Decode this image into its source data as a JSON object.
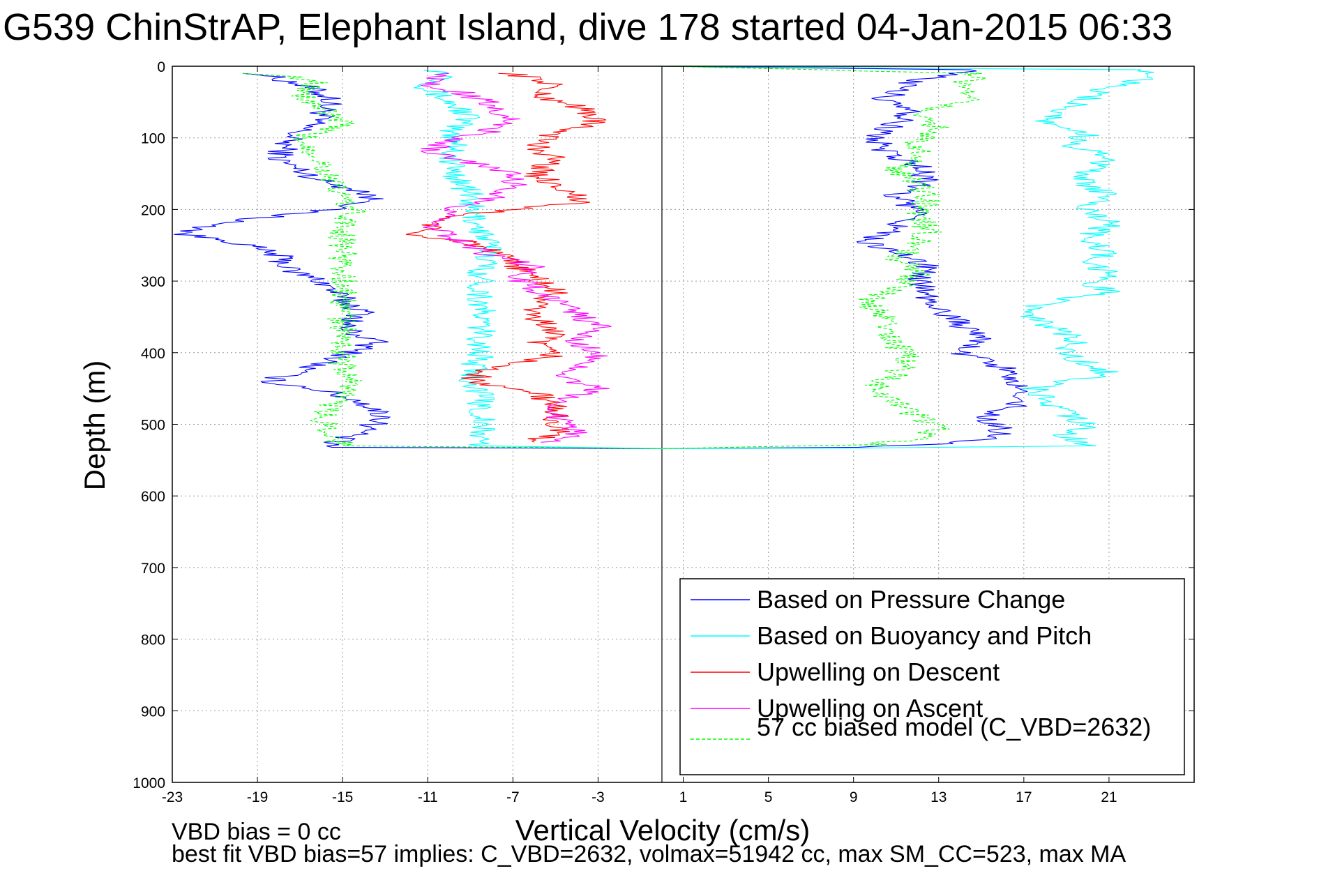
{
  "title": "G539 ChinStrAP, Elephant Island, dive 178 started 04-Jan-2015 06:33",
  "footnotes": {
    "line1": "VBD bias = 0 cc",
    "line2": "best fit VBD bias=57 implies: C_VBD=2632, volmax=51942 cc, max SM_CC=523, max MA"
  },
  "chart_data": {
    "type": "line",
    "xlabel": "Vertical Velocity (cm/s)",
    "ylabel": "Depth (m)",
    "xlim": [
      -23,
      25
    ],
    "ylim": [
      1000,
      0
    ],
    "y_reversed": true,
    "xticks": [
      -23,
      -19,
      -15,
      -11,
      -7,
      -3,
      1,
      5,
      9,
      13,
      17,
      21
    ],
    "yticks": [
      0,
      100,
      200,
      300,
      400,
      500,
      600,
      700,
      800,
      900,
      1000
    ],
    "grid": true,
    "legend_position": "bottom-right",
    "reference_line_x": 0,
    "series": [
      {
        "name": "Based on Pressure Change",
        "color": "#0000ff",
        "dash": "solid",
        "points": [
          [
            -19,
            10
          ],
          [
            -17,
            25
          ],
          [
            -15.5,
            45
          ],
          [
            -16,
            70
          ],
          [
            -17.5,
            100
          ],
          [
            -18,
            130
          ],
          [
            -16,
            160
          ],
          [
            -14,
            175
          ],
          [
            -13.5,
            190
          ],
          [
            -17,
            205
          ],
          [
            -21,
            220
          ],
          [
            -22.5,
            235
          ],
          [
            -20,
            245
          ],
          [
            -18,
            265
          ],
          [
            -17.5,
            285
          ],
          [
            -16,
            300
          ],
          [
            -15,
            325
          ],
          [
            -14,
            345
          ],
          [
            -15,
            365
          ],
          [
            -13.5,
            385
          ],
          [
            -15,
            405
          ],
          [
            -17,
            425
          ],
          [
            -18.5,
            440
          ],
          [
            -16,
            452
          ],
          [
            -14,
            470
          ],
          [
            -13,
            490
          ],
          [
            -14,
            510
          ],
          [
            -15.5,
            525
          ],
          [
            -15.5,
            532
          ],
          [
            0,
            534
          ],
          [
            9,
            532
          ],
          [
            13,
            527
          ],
          [
            15.5,
            520
          ],
          [
            16,
            505
          ],
          [
            15,
            490
          ],
          [
            17,
            470
          ],
          [
            16.5,
            440
          ],
          [
            16,
            420
          ],
          [
            14,
            400
          ],
          [
            15,
            385
          ],
          [
            14,
            360
          ],
          [
            13,
            340
          ],
          [
            12.5,
            320
          ],
          [
            12,
            300
          ],
          [
            12.5,
            280
          ],
          [
            11,
            260
          ],
          [
            9.5,
            245
          ],
          [
            11,
            225
          ],
          [
            12,
            205
          ],
          [
            11,
            180
          ],
          [
            12.5,
            160
          ],
          [
            12,
            140
          ],
          [
            10.5,
            120
          ],
          [
            10,
            100
          ],
          [
            11,
            80
          ],
          [
            12,
            60
          ],
          [
            10.5,
            45
          ],
          [
            11,
            35
          ],
          [
            12,
            20
          ],
          [
            14.5,
            5
          ],
          [
            0,
            0
          ]
        ]
      },
      {
        "name": "Based on Buoyancy and Pitch",
        "color": "#00ffff",
        "dash": "solid",
        "points": [
          [
            -10.5,
            5
          ],
          [
            -10,
            15
          ],
          [
            -11,
            30
          ],
          [
            -10,
            50
          ],
          [
            -9,
            70
          ],
          [
            -10,
            90
          ],
          [
            -9.5,
            110
          ],
          [
            -10,
            130
          ],
          [
            -9.5,
            160
          ],
          [
            -9,
            180
          ],
          [
            -9,
            200
          ],
          [
            -8.5,
            230
          ],
          [
            -8,
            260
          ],
          [
            -8.5,
            290
          ],
          [
            -8.5,
            330
          ],
          [
            -8.5,
            370
          ],
          [
            -8.5,
            400
          ],
          [
            -9,
            430
          ],
          [
            -8.5,
            460
          ],
          [
            -8.5,
            500
          ],
          [
            -8.5,
            530
          ],
          [
            0,
            534
          ],
          [
            10,
            533
          ],
          [
            20,
            530
          ],
          [
            19,
            515
          ],
          [
            20,
            500
          ],
          [
            19,
            485
          ],
          [
            18,
            470
          ],
          [
            17.5,
            450
          ],
          [
            19,
            440
          ],
          [
            21,
            430
          ],
          [
            20,
            415
          ],
          [
            19,
            400
          ],
          [
            19.5,
            380
          ],
          [
            18,
            360
          ],
          [
            17,
            340
          ],
          [
            19,
            325
          ],
          [
            21,
            315
          ],
          [
            20,
            300
          ],
          [
            21,
            290
          ],
          [
            20,
            275
          ],
          [
            21,
            260
          ],
          [
            20,
            240
          ],
          [
            21,
            220
          ],
          [
            20,
            200
          ],
          [
            21,
            180
          ],
          [
            20,
            165
          ],
          [
            20,
            145
          ],
          [
            21,
            125
          ],
          [
            19,
            110
          ],
          [
            20,
            95
          ],
          [
            18,
            75
          ],
          [
            19,
            60
          ],
          [
            20,
            45
          ],
          [
            21,
            30
          ],
          [
            23,
            15
          ],
          [
            22.5,
            5
          ],
          [
            0,
            0
          ]
        ]
      },
      {
        "name": "Upwelling on Descent",
        "color": "#ff0000",
        "dash": "solid",
        "points": [
          [
            -7,
            10
          ],
          [
            -5,
            25
          ],
          [
            -6,
            40
          ],
          [
            -4,
            55
          ],
          [
            -3,
            75
          ],
          [
            -5,
            95
          ],
          [
            -6,
            110
          ],
          [
            -5,
            130
          ],
          [
            -6,
            150
          ],
          [
            -5,
            165
          ],
          [
            -4,
            180
          ],
          [
            -4,
            190
          ],
          [
            -7,
            200
          ],
          [
            -10,
            210
          ],
          [
            -11,
            225
          ],
          [
            -12,
            235
          ],
          [
            -9,
            245
          ],
          [
            -8,
            260
          ],
          [
            -7,
            275
          ],
          [
            -6,
            295
          ],
          [
            -5,
            315
          ],
          [
            -6,
            335
          ],
          [
            -6,
            350
          ],
          [
            -5,
            370
          ],
          [
            -6,
            390
          ],
          [
            -5,
            405
          ],
          [
            -8,
            420
          ],
          [
            -9,
            440
          ],
          [
            -6,
            455
          ],
          [
            -5,
            475
          ],
          [
            -5,
            495
          ],
          [
            -5,
            510
          ],
          [
            -6,
            525
          ]
        ]
      },
      {
        "name": "Upwelling on Ascent",
        "color": "#ff00ff",
        "dash": "solid",
        "points": [
          [
            -5,
            525
          ],
          [
            -4,
            510
          ],
          [
            -5,
            490
          ],
          [
            -5,
            470
          ],
          [
            -3,
            450
          ],
          [
            -5,
            435
          ],
          [
            -4,
            420
          ],
          [
            -3,
            400
          ],
          [
            -4,
            385
          ],
          [
            -3,
            365
          ],
          [
            -4,
            345
          ],
          [
            -5,
            330
          ],
          [
            -6,
            310
          ],
          [
            -7,
            295
          ],
          [
            -6,
            280
          ],
          [
            -8,
            265
          ],
          [
            -9,
            250
          ],
          [
            -10,
            235
          ],
          [
            -11,
            220
          ],
          [
            -10,
            200
          ],
          [
            -8,
            185
          ],
          [
            -7,
            170
          ],
          [
            -7,
            150
          ],
          [
            -9,
            135
          ],
          [
            -11,
            120
          ],
          [
            -10,
            105
          ],
          [
            -8,
            90
          ],
          [
            -7,
            75
          ],
          [
            -8,
            55
          ],
          [
            -9,
            40
          ],
          [
            -11,
            25
          ],
          [
            -10,
            10
          ]
        ]
      },
      {
        "name": "57 cc biased model (C_VBD=2632)",
        "color": "#00ff00",
        "dash": "dashed",
        "points": [
          [
            -19,
            10
          ],
          [
            -16,
            20
          ],
          [
            -17,
            40
          ],
          [
            -16,
            60
          ],
          [
            -15,
            80
          ],
          [
            -17,
            100
          ],
          [
            -16,
            130
          ],
          [
            -15.5,
            165
          ],
          [
            -15,
            185
          ],
          [
            -14.5,
            200
          ],
          [
            -15,
            225
          ],
          [
            -15,
            260
          ],
          [
            -15,
            300
          ],
          [
            -15,
            340
          ],
          [
            -15,
            380
          ],
          [
            -15,
            420
          ],
          [
            -14.5,
            450
          ],
          [
            -15.5,
            470
          ],
          [
            -16,
            490
          ],
          [
            -15.5,
            510
          ],
          [
            -15,
            530
          ],
          [
            0,
            534
          ],
          [
            10,
            528
          ],
          [
            12,
            520
          ],
          [
            13,
            505
          ],
          [
            12,
            490
          ],
          [
            11,
            470
          ],
          [
            10,
            450
          ],
          [
            11,
            430
          ],
          [
            11.5,
            410
          ],
          [
            11,
            390
          ],
          [
            10.5,
            370
          ],
          [
            10.5,
            350
          ],
          [
            9.5,
            330
          ],
          [
            11,
            310
          ],
          [
            12,
            290
          ],
          [
            11,
            270
          ],
          [
            12,
            250
          ],
          [
            12.5,
            230
          ],
          [
            12,
            210
          ],
          [
            12.5,
            185
          ],
          [
            12,
            165
          ],
          [
            11,
            145
          ],
          [
            12,
            125
          ],
          [
            12,
            105
          ],
          [
            13,
            85
          ],
          [
            12,
            65
          ],
          [
            15,
            45
          ],
          [
            14,
            25
          ],
          [
            15,
            10
          ],
          [
            0,
            0
          ]
        ]
      }
    ]
  }
}
